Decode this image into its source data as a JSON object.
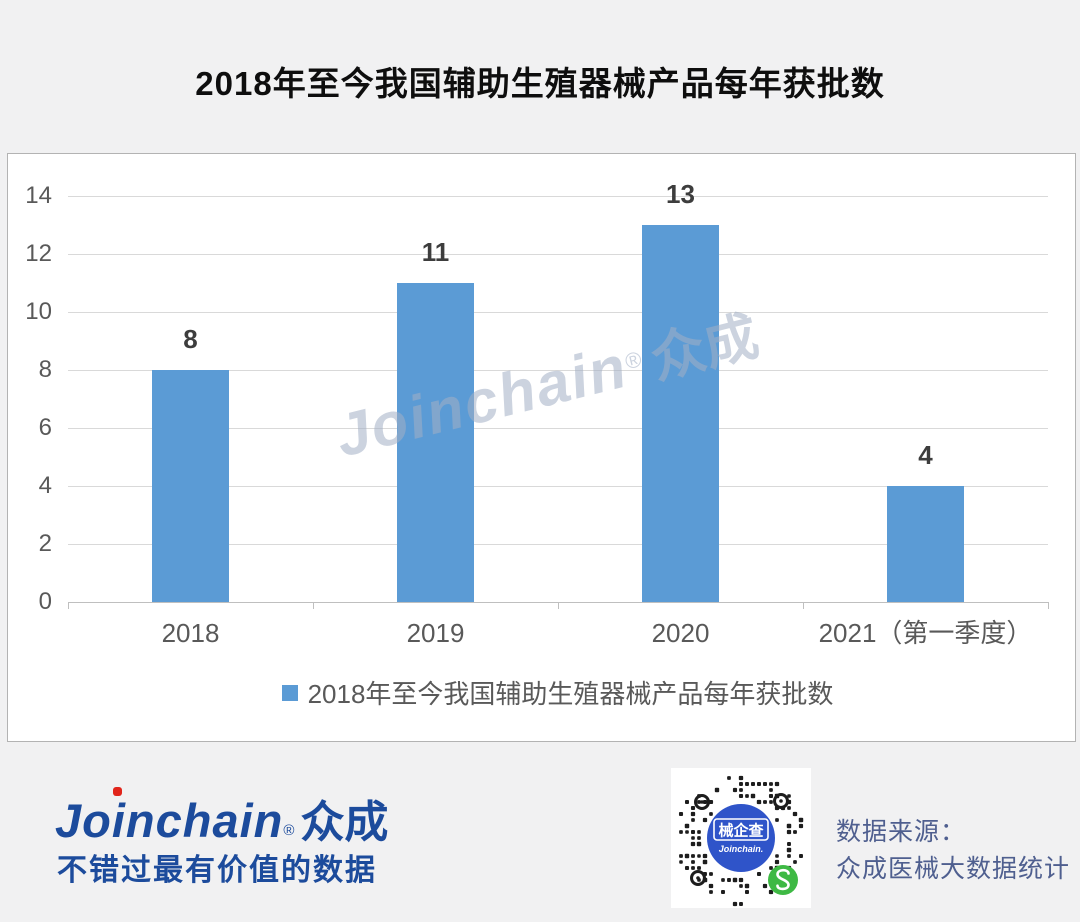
{
  "page": {
    "title": "2018年至今我国辅助生殖器械产品每年获批数"
  },
  "chart_data": {
    "type": "bar",
    "title": "2018年至今我国辅助生殖器械产品每年获批数",
    "categories": [
      "2018",
      "2019",
      "2020",
      "2021（第一季度）"
    ],
    "values": [
      8,
      11,
      13,
      4
    ],
    "xlabel": "",
    "ylabel": "",
    "ylim": [
      0,
      14
    ],
    "ytick_step": 2,
    "yticks": [
      0,
      2,
      4,
      6,
      8,
      10,
      12,
      14
    ],
    "grid": true,
    "bar_color": "#5b9bd5",
    "legend_label": "2018年至今我国辅助生殖器械产品每年获批数",
    "legend_position": "bottom"
  },
  "watermark": {
    "latin": "Joinchain",
    "reg": "®",
    "cn": "众成"
  },
  "footer": {
    "logo_latin": "Joinchain",
    "logo_reg": "®",
    "logo_cn": "众成",
    "tagline": "不错过最有价值的数据",
    "qr_center_title": "械企查",
    "qr_center_brand": "Joinchain.",
    "source_line1": "数据来源：",
    "source_line2": "众成医械大数据统计"
  },
  "colors": {
    "page_background": "#f1f1f2",
    "panel_background": "#ffffff",
    "bar": "#5b9bd5",
    "gridline": "#d9d9d9",
    "axis_line": "#bfbfbf",
    "tick_text": "#595959",
    "value_text": "#3d3d3d",
    "title_text": "#0e0e0e",
    "brand_blue": "#1c4b9c",
    "logo_dot_red": "#e1251b",
    "source_text": "#4f5f8f",
    "qr_blue": "#2f54c9",
    "wechat_green": "#3eb944"
  }
}
